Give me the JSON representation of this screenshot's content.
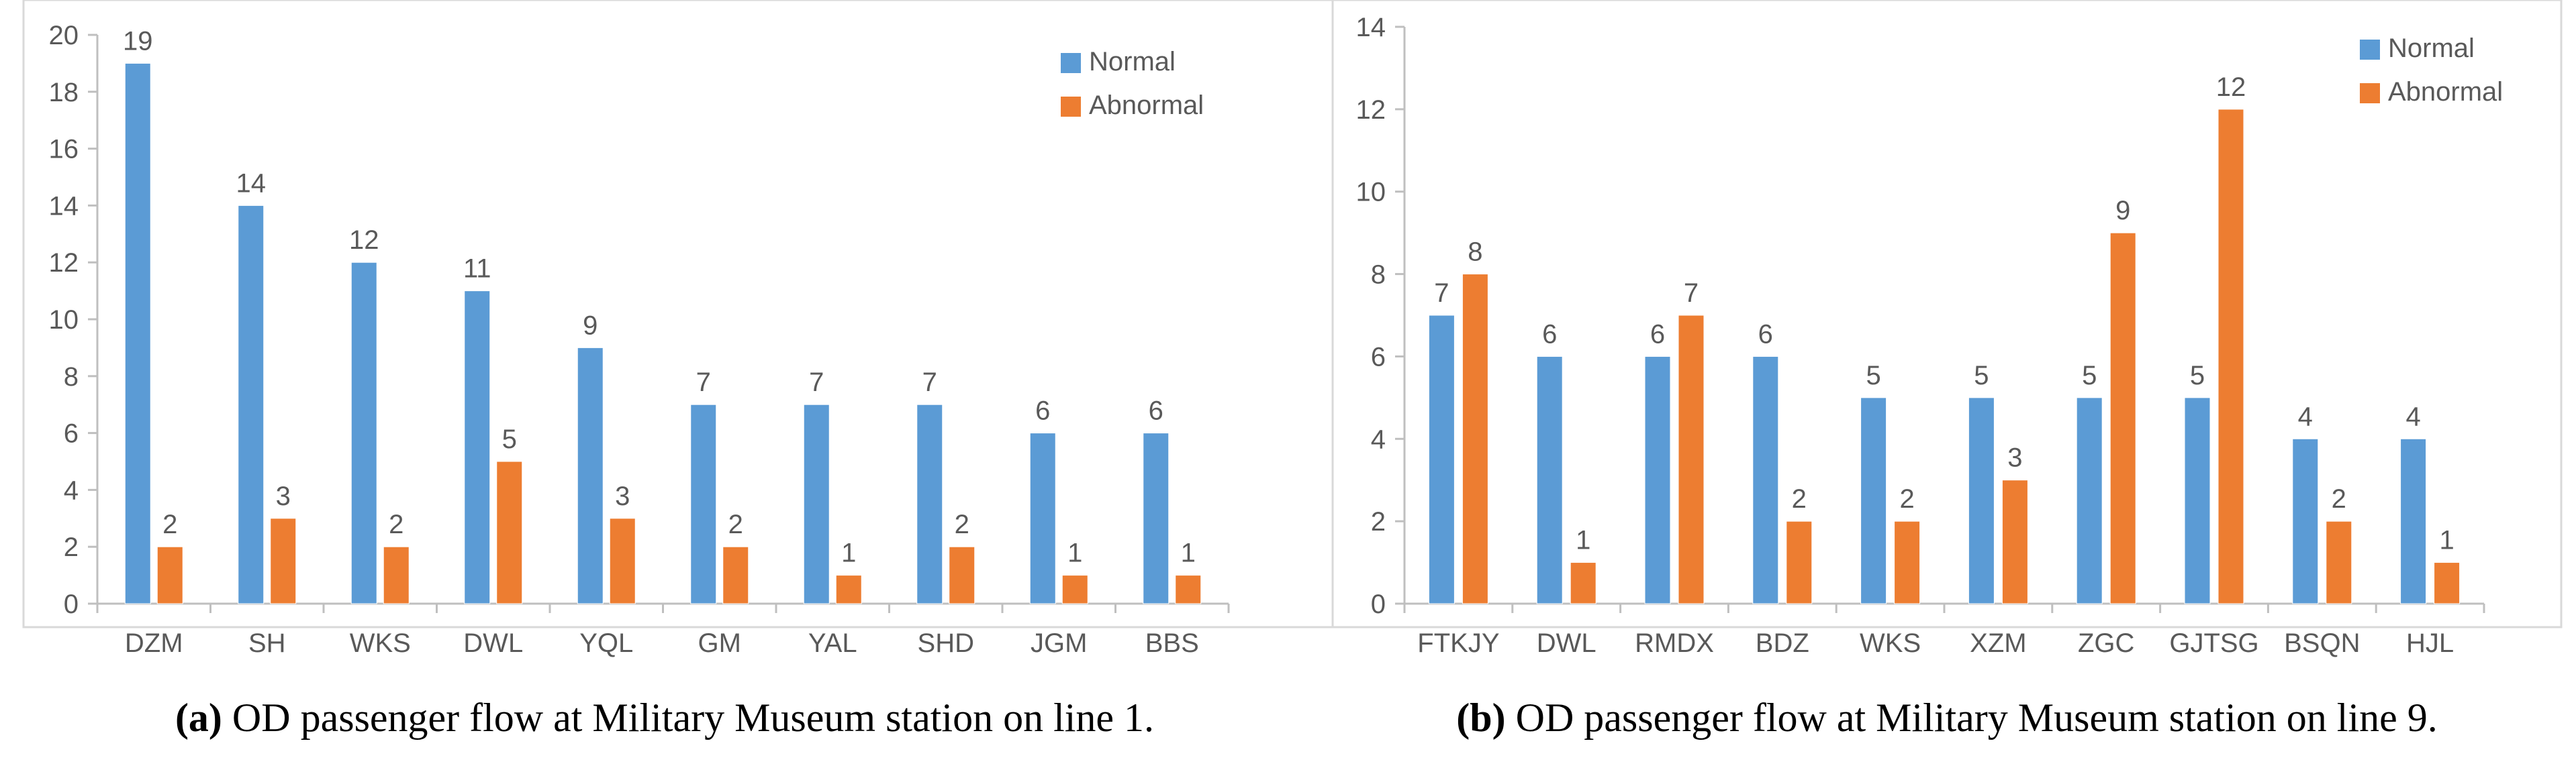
{
  "colors": {
    "normal": "#5b9bd5",
    "abnormal": "#ed7d31",
    "axis": "#bfbfbf",
    "text": "#595959",
    "frame": "#d9d9d9"
  },
  "chart_data": [
    {
      "type": "bar",
      "title": "",
      "xlabel": "",
      "ylabel": "",
      "ylim": [
        0,
        20
      ],
      "yticks": [
        0,
        2,
        4,
        6,
        8,
        10,
        12,
        14,
        16,
        18,
        20
      ],
      "ytick_labels": [
        "0",
        "2",
        "4",
        "6",
        "8",
        "10",
        "12",
        "14",
        "16",
        "18",
        "20"
      ],
      "grid": false,
      "legend_position": "top-right",
      "categories": [
        "DZM",
        "SH",
        "WKS",
        "DWL",
        "YQL",
        "GM",
        "YAL",
        "SHD",
        "JGM",
        "BBS"
      ],
      "series": [
        {
          "name": "Normal",
          "values": [
            19,
            14,
            12,
            11,
            9,
            7,
            7,
            7,
            6,
            6
          ],
          "value_labels": [
            "19",
            "14",
            "12",
            "11",
            "9",
            "7",
            "7",
            "7",
            "6",
            "6"
          ]
        },
        {
          "name": "Abnormal",
          "values": [
            2,
            3,
            2,
            5,
            3,
            2,
            1,
            2,
            1,
            1
          ],
          "value_labels": [
            "2",
            "3",
            "2",
            "5",
            "3",
            "2",
            "1",
            "2",
            "1",
            "1"
          ]
        }
      ],
      "caption_letter": "(a)",
      "caption_text": " OD passenger flow at Military Museum station on line 1."
    },
    {
      "type": "bar",
      "title": "",
      "xlabel": "",
      "ylabel": "",
      "ylim": [
        0,
        14
      ],
      "yticks": [
        0,
        2,
        4,
        6,
        8,
        10,
        12,
        14
      ],
      "ytick_labels": [
        "0",
        "2",
        "4",
        "6",
        "8",
        "10",
        "12",
        "14"
      ],
      "grid": false,
      "legend_position": "top-right",
      "categories": [
        "FTKJY",
        "DWL",
        "RMDX",
        "BDZ",
        "WKS",
        "XZM",
        "ZGC",
        "GJTSG",
        "BSQN",
        "HJL"
      ],
      "series": [
        {
          "name": "Normal",
          "values": [
            7,
            6,
            6,
            6,
            5,
            5,
            5,
            5,
            4,
            4
          ],
          "value_labels": [
            "7",
            "6",
            "6",
            "6",
            "5",
            "5",
            "5",
            "5",
            "4",
            "4"
          ]
        },
        {
          "name": "Abnormal",
          "values": [
            8,
            1,
            7,
            2,
            2,
            3,
            9,
            12,
            2,
            1
          ],
          "value_labels": [
            "8",
            "1",
            "7",
            "2",
            "2",
            "3",
            "9",
            "12",
            "2",
            "1"
          ]
        }
      ],
      "caption_letter": "(b)",
      "caption_text": " OD passenger flow at Military Museum station on line 9."
    }
  ]
}
